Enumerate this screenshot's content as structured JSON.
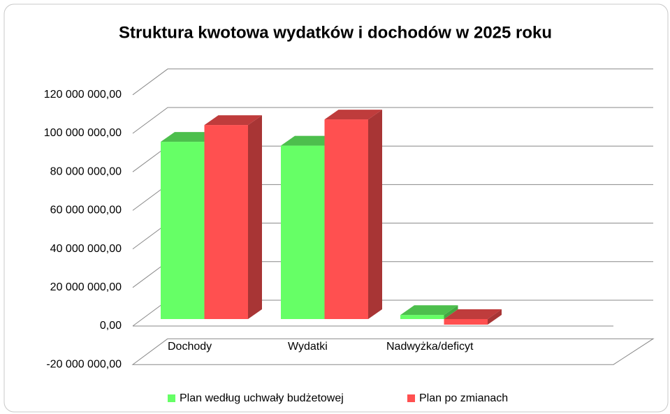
{
  "chart_data": {
    "type": "bar3d",
    "title": "Struktura kwotowa wydatków i dochodów w 2025  roku",
    "categories": [
      "Dochody",
      "Wydatki",
      "Nadwyżka/deficyt"
    ],
    "series": [
      {
        "name": "Plan według uchwały budżetowej",
        "color": "#66ff66",
        "values": [
          92000000,
          90000000,
          2100000
        ]
      },
      {
        "name": "Plan po zmianach",
        "color": "#ff5050",
        "values": [
          100700000,
          103600000,
          -2900000
        ]
      }
    ],
    "ylim": [
      -20000000,
      120000000
    ],
    "yticks": [
      {
        "value": -20000000,
        "label": "-20 000 000,00"
      },
      {
        "value": 0,
        "label": "0,00"
      },
      {
        "value": 20000000,
        "label": "20 000 000,00"
      },
      {
        "value": 40000000,
        "label": "40 000 000,00"
      },
      {
        "value": 60000000,
        "label": "60 000 000,00"
      },
      {
        "value": 80000000,
        "label": "80 000 000,00"
      },
      {
        "value": 100000000,
        "label": "100 000 000,00"
      },
      {
        "value": 120000000,
        "label": "120 000 000,00"
      }
    ],
    "grid": true,
    "legend": "bottom"
  }
}
